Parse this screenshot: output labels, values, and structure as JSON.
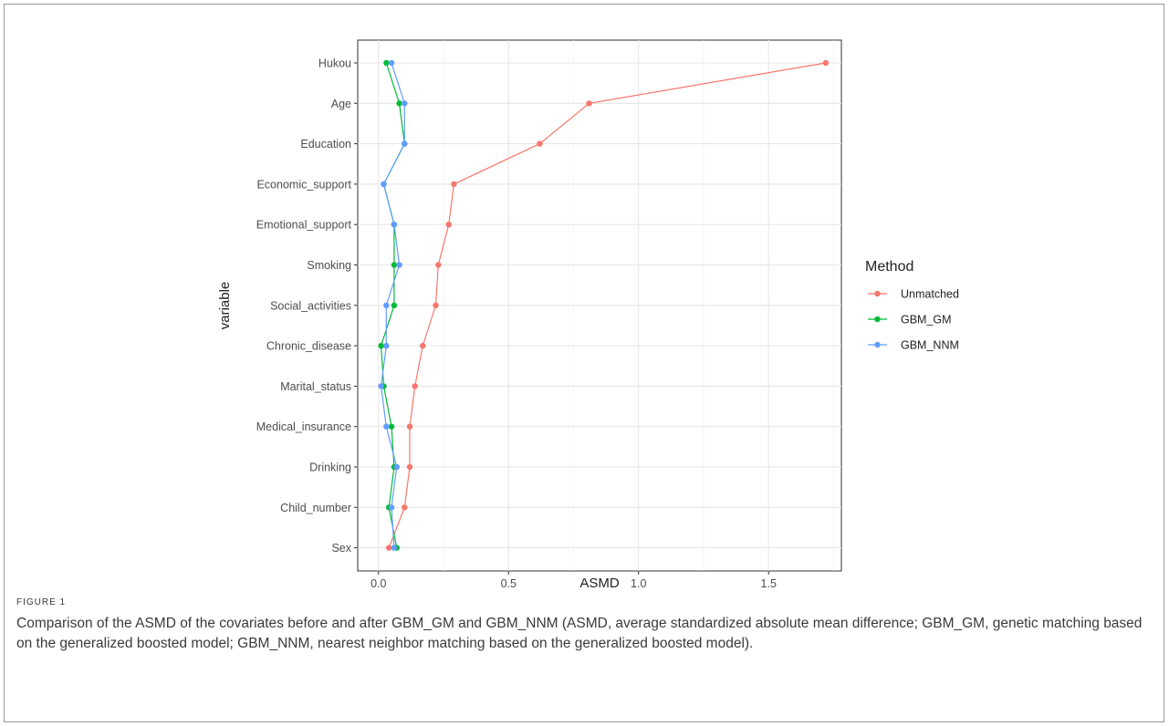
{
  "figure": {
    "label": "FIGURE 1",
    "caption": "Comparison of the ASMD of the covariates before and after GBM_GM and GBM_NNM (ASMD, average standardized absolute mean difference; GBM_GM, genetic matching based on the generalized boosted model; GBM_NNM, nearest neighbor matching based on the generalized boosted model)."
  },
  "chart_data": {
    "type": "line",
    "xlabel": "ASMD",
    "ylabel": "variable",
    "xlim": [
      -0.08,
      1.78
    ],
    "xticks": [
      0.0,
      0.5,
      1.0,
      1.5
    ],
    "xtick_labels": [
      "0.0",
      "0.5",
      "1.0",
      "1.5"
    ],
    "grid": true,
    "legend": {
      "title": "Method",
      "position": "right"
    },
    "categories": [
      "Hukou",
      "Age",
      "Education",
      "Economic_support",
      "Emotional_support",
      "Smoking",
      "Social_activities",
      "Chronic_disease",
      "Marital_status",
      "Medical_insurance",
      "Drinking",
      "Child_number",
      "Sex"
    ],
    "series": [
      {
        "name": "Unmatched",
        "color": "#F8766D",
        "values": [
          1.72,
          0.81,
          0.62,
          0.29,
          0.27,
          0.23,
          0.22,
          0.17,
          0.14,
          0.12,
          0.12,
          0.1,
          0.04
        ]
      },
      {
        "name": "GBM_GM",
        "color": "#00BA38",
        "values": [
          0.03,
          0.08,
          0.1,
          0.02,
          0.06,
          0.06,
          0.06,
          0.01,
          0.02,
          0.05,
          0.06,
          0.04,
          0.07
        ]
      },
      {
        "name": "GBM_NNM",
        "color": "#619CFF",
        "values": [
          0.05,
          0.1,
          0.1,
          0.02,
          0.06,
          0.08,
          0.03,
          0.03,
          0.01,
          0.03,
          0.07,
          0.05,
          0.06
        ]
      }
    ]
  }
}
